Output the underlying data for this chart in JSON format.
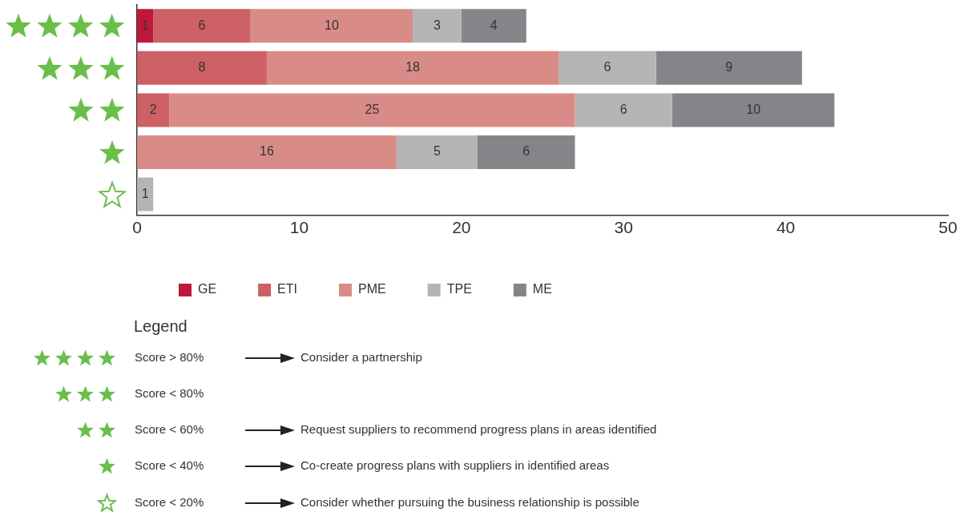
{
  "chart_data": {
    "type": "bar",
    "orientation": "horizontal",
    "stacked": true,
    "categories": [
      null,
      null,
      null,
      null,
      null
    ],
    "series": [
      {
        "name": "GE",
        "color": "#c0183c",
        "values": [
          1,
          null,
          null,
          null,
          null
        ]
      },
      {
        "name": "ETI",
        "color": "#cd6166",
        "values": [
          6,
          8,
          2,
          null,
          null
        ]
      },
      {
        "name": "PME",
        "color": "#d98c87",
        "values": [
          10,
          18,
          25,
          16,
          null
        ]
      },
      {
        "name": "TPE",
        "color": "#b3b5b6",
        "values": [
          3,
          6,
          6,
          5,
          1
        ]
      },
      {
        "name": "ME",
        "color": "#848588",
        "values": [
          4,
          9,
          10,
          6,
          null
        ]
      }
    ],
    "xlim": [
      0,
      50
    ],
    "xticks": [
      0,
      10,
      20,
      30,
      40,
      50
    ],
    "grid": false,
    "legend": "bottom",
    "data_labels": true,
    "tick_labels": "x",
    "annotations": [
      "Legend",
      "Score > 80%",
      "Consider a partnership",
      "Score < 80%",
      "Score < 60%",
      "Request suppliers to recommend progress plans in areas identified",
      "Score < 40%",
      "Co-create progress plans with suppliers in identified areas",
      "Score < 20%",
      "Consider whether pursuing the business relationship is possible"
    ]
  }
}
